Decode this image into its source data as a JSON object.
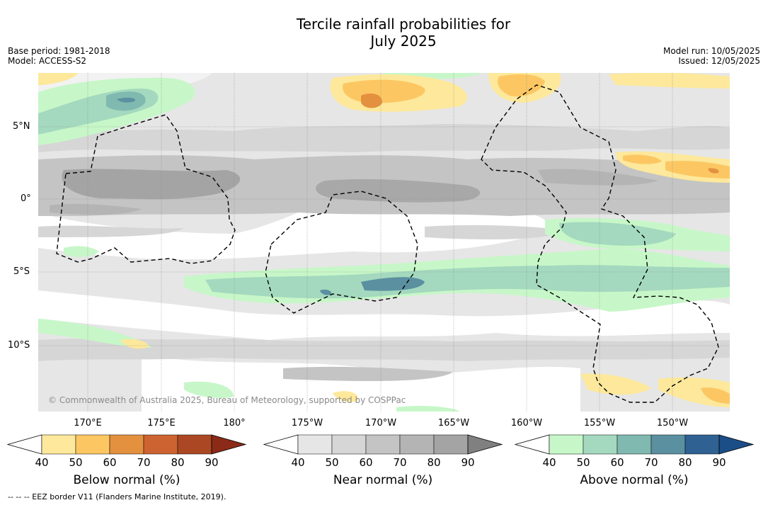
{
  "title_line1": "Tercile rainfall probabilities for",
  "title_line2": "July 2025",
  "base_period": "Base period: 1981-2018",
  "model": "Model: ACCESS-S2",
  "model_run": "Model run: 10/05/2025",
  "issued": "Issued: 12/05/2025",
  "lat_labels": [
    "5°N",
    "0°",
    "5°S",
    "10°S"
  ],
  "lon_labels": [
    "170°E",
    "175°E",
    "180°",
    "175°W",
    "170°W",
    "165°W",
    "160°W",
    "155°W",
    "150°W"
  ],
  "copyright": "© Commonwealth of Australia 2025, Bureau of Meteorology, supported by COSPPac",
  "colorbars": [
    {
      "name": "below",
      "title": "Below normal (%)",
      "ticks": [
        "40",
        "50",
        "60",
        "70",
        "80",
        "90"
      ],
      "colors": [
        "#ffffff",
        "#fde89b",
        "#fcc762",
        "#e3913f",
        "#cd6331",
        "#ab4823",
        "#8a2a17"
      ]
    },
    {
      "name": "near",
      "title": "Near normal (%)",
      "ticks": [
        "40",
        "50",
        "60",
        "70",
        "80",
        "90"
      ],
      "colors": [
        "#ffffff",
        "#e6e6e6",
        "#d6d6d6",
        "#c4c4c4",
        "#b4b4b4",
        "#a4a4a4",
        "#808080"
      ]
    },
    {
      "name": "above",
      "title": "Above normal (%)",
      "ticks": [
        "40",
        "50",
        "60",
        "70",
        "80",
        "90"
      ],
      "colors": [
        "#ffffff",
        "#c7f7c8",
        "#a4d9bf",
        "#80b9af",
        "#5a90a0",
        "#2f6193",
        "#1b4d86"
      ]
    }
  ],
  "footnote": "-- -- -- EEZ border V11 (Flanders Marine Institute, 2019)."
}
